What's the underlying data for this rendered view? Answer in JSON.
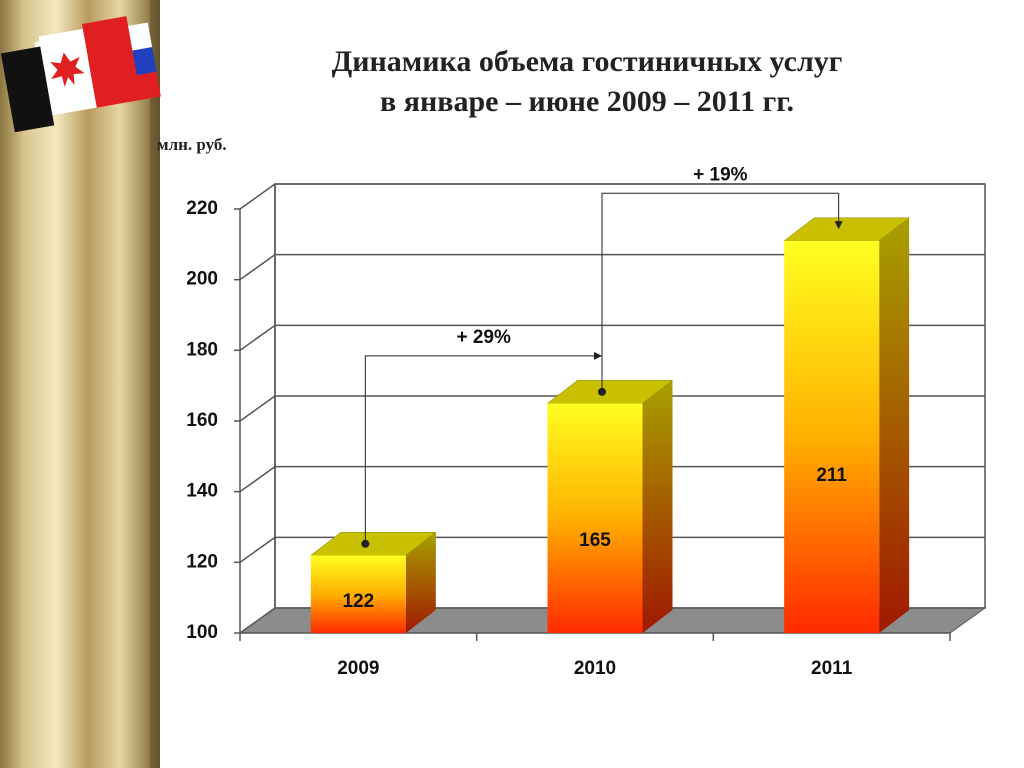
{
  "chart_data": {
    "type": "bar",
    "title": [
      "Динамика объема гостиничных услуг",
      "в январе – июне  2009 – 2011 гг."
    ],
    "y_label": "млн. руб.",
    "categories": [
      "2009",
      "2010",
      "2011"
    ],
    "values": [
      122,
      165,
      211
    ],
    "ylim": [
      100,
      220
    ],
    "yticks": [
      100,
      120,
      140,
      160,
      180,
      200,
      220
    ],
    "grid": true,
    "annotations": [
      "+ 29%",
      "+ 19%"
    ]
  }
}
